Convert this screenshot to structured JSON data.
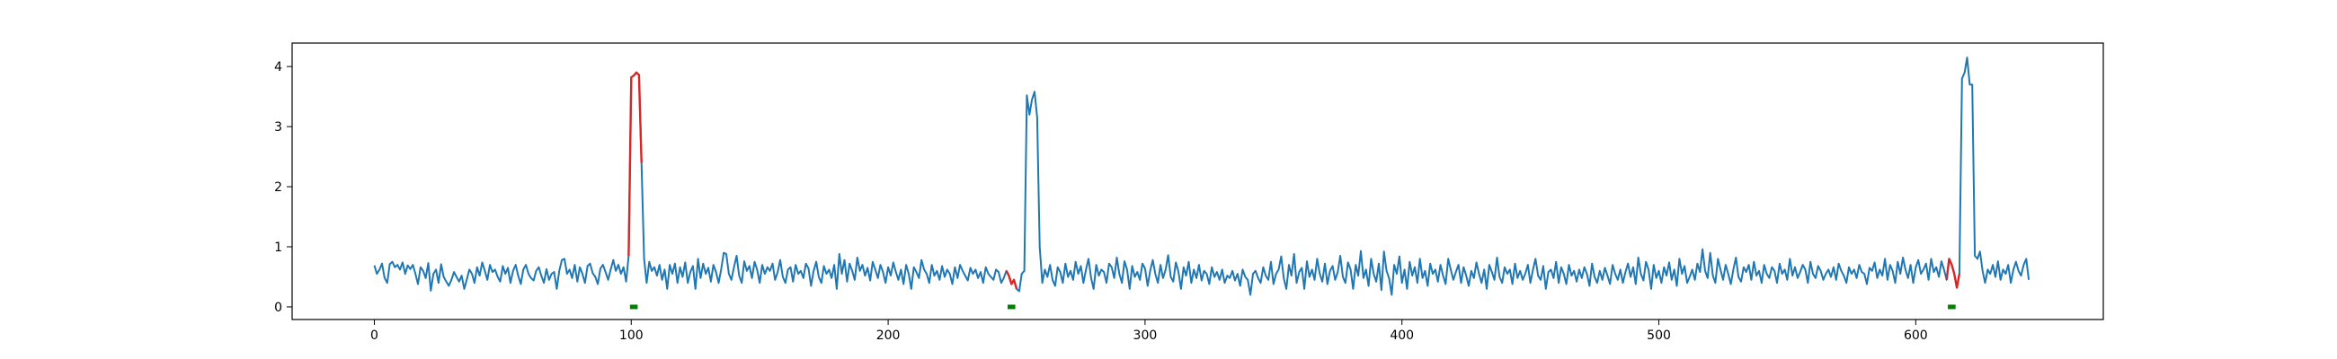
{
  "chart_data": {
    "type": "line",
    "title": "",
    "xlabel": "",
    "ylabel": "",
    "xlim": [
      -32,
      673
    ],
    "ylim": [
      -0.21,
      4.39
    ],
    "x_ticks": [
      0,
      100,
      200,
      300,
      400,
      500,
      600
    ],
    "y_ticks": [
      0,
      1,
      2,
      3,
      4
    ],
    "grid": false,
    "legend": null,
    "colors": {
      "signal": "#1f77b4",
      "anomaly": "#d62728",
      "marker": "#008000"
    },
    "series": [
      {
        "role": "signal",
        "x_start": 0,
        "x_step": 1,
        "values": [
          0.69,
          0.55,
          0.62,
          0.72,
          0.48,
          0.4,
          0.71,
          0.75,
          0.66,
          0.7,
          0.62,
          0.74,
          0.55,
          0.69,
          0.63,
          0.7,
          0.55,
          0.38,
          0.66,
          0.6,
          0.48,
          0.73,
          0.27,
          0.55,
          0.62,
          0.4,
          0.71,
          0.5,
          0.42,
          0.35,
          0.45,
          0.58,
          0.5,
          0.42,
          0.52,
          0.3,
          0.46,
          0.62,
          0.55,
          0.4,
          0.66,
          0.52,
          0.74,
          0.6,
          0.45,
          0.7,
          0.58,
          0.62,
          0.5,
          0.42,
          0.68,
          0.55,
          0.65,
          0.4,
          0.6,
          0.7,
          0.52,
          0.38,
          0.62,
          0.7,
          0.55,
          0.48,
          0.44,
          0.6,
          0.66,
          0.52,
          0.4,
          0.63,
          0.45,
          0.55,
          0.58,
          0.3,
          0.6,
          0.78,
          0.8,
          0.55,
          0.62,
          0.48,
          0.7,
          0.42,
          0.66,
          0.55,
          0.4,
          0.68,
          0.72,
          0.56,
          0.5,
          0.38,
          0.64,
          0.7,
          0.58,
          0.45,
          0.62,
          0.78,
          0.6,
          0.7,
          0.55,
          0.66,
          0.42,
          0.85,
          3.82,
          3.85,
          3.9,
          3.86,
          2.4,
          0.8,
          0.4,
          0.75,
          0.6,
          0.66,
          0.52,
          0.7,
          0.45,
          0.62,
          0.3,
          0.7,
          0.55,
          0.72,
          0.4,
          0.66,
          0.5,
          0.74,
          0.4,
          0.58,
          0.68,
          0.3,
          0.8,
          0.48,
          0.72,
          0.55,
          0.65,
          0.42,
          0.7,
          0.58,
          0.4,
          0.62,
          0.9,
          0.88,
          0.55,
          0.45,
          0.66,
          0.85,
          0.52,
          0.4,
          0.76,
          0.6,
          0.68,
          0.48,
          0.75,
          0.62,
          0.4,
          0.7,
          0.55,
          0.66,
          0.6,
          0.72,
          0.45,
          0.58,
          0.78,
          0.5,
          0.4,
          0.62,
          0.66,
          0.42,
          0.7,
          0.55,
          0.6,
          0.48,
          0.72,
          0.64,
          0.35,
          0.6,
          0.75,
          0.5,
          0.4,
          0.68,
          0.55,
          0.62,
          0.48,
          0.7,
          0.3,
          0.88,
          0.55,
          0.78,
          0.42,
          0.72,
          0.6,
          0.45,
          0.82,
          0.6,
          0.7,
          0.52,
          0.65,
          0.44,
          0.75,
          0.62,
          0.48,
          0.7,
          0.58,
          0.4,
          0.66,
          0.52,
          0.74,
          0.58,
          0.45,
          0.62,
          0.38,
          0.7,
          0.55,
          0.3,
          0.66,
          0.58,
          0.48,
          0.78,
          0.62,
          0.55,
          0.4,
          0.7,
          0.52,
          0.6,
          0.45,
          0.68,
          0.5,
          0.62,
          0.55,
          0.38,
          0.66,
          0.48,
          0.7,
          0.6,
          0.52,
          0.44,
          0.65,
          0.55,
          0.62,
          0.48,
          0.58,
          0.4,
          0.66,
          0.55,
          0.5,
          0.45,
          0.62,
          0.58,
          0.4,
          0.48,
          0.6,
          0.52,
          0.38,
          0.45,
          0.3,
          0.26,
          0.55,
          0.6,
          3.52,
          3.2,
          3.45,
          3.58,
          3.15,
          1.0,
          0.4,
          0.62,
          0.5,
          0.7,
          0.45,
          0.35,
          0.66,
          0.58,
          0.4,
          0.72,
          0.5,
          0.6,
          0.45,
          0.75,
          0.55,
          0.68,
          0.4,
          0.62,
          0.8,
          0.48,
          0.3,
          0.7,
          0.52,
          0.62,
          0.58,
          0.4,
          0.72,
          0.66,
          0.48,
          0.82,
          0.55,
          0.4,
          0.76,
          0.62,
          0.3,
          0.68,
          0.5,
          0.58,
          0.45,
          0.72,
          0.64,
          0.35,
          0.6,
          0.78,
          0.55,
          0.4,
          0.7,
          0.48,
          0.62,
          0.86,
          0.5,
          0.42,
          0.74,
          0.58,
          0.3,
          0.66,
          0.52,
          0.75,
          0.4,
          0.62,
          0.48,
          0.7,
          0.44,
          0.6,
          0.55,
          0.38,
          0.66,
          0.5,
          0.58,
          0.45,
          0.62,
          0.4,
          0.52,
          0.48,
          0.6,
          0.44,
          0.55,
          0.35,
          0.62,
          0.5,
          0.45,
          0.2,
          0.55,
          0.6,
          0.48,
          0.4,
          0.66,
          0.52,
          0.45,
          0.75,
          0.38,
          0.55,
          0.62,
          0.84,
          0.48,
          0.3,
          0.7,
          0.52,
          0.88,
          0.4,
          0.58,
          0.65,
          0.3,
          0.76,
          0.5,
          0.62,
          0.45,
          0.8,
          0.55,
          0.42,
          0.72,
          0.38,
          0.6,
          0.68,
          0.45,
          0.58,
          0.85,
          0.5,
          0.4,
          0.74,
          0.62,
          0.3,
          0.7,
          0.52,
          0.93,
          0.48,
          0.62,
          0.35,
          0.8,
          0.55,
          0.42,
          0.72,
          0.28,
          0.92,
          0.6,
          0.48,
          0.2,
          0.7,
          0.55,
          0.84,
          0.4,
          0.62,
          0.3,
          0.75,
          0.52,
          0.66,
          0.4,
          0.8,
          0.48,
          0.6,
          0.35,
          0.72,
          0.55,
          0.62,
          0.42,
          0.7,
          0.52,
          0.38,
          0.8,
          0.62,
          0.45,
          0.58,
          0.7,
          0.4,
          0.66,
          0.52,
          0.35,
          0.6,
          0.48,
          0.74,
          0.55,
          0.4,
          0.62,
          0.3,
          0.7,
          0.58,
          0.45,
          0.82,
          0.5,
          0.4,
          0.66,
          0.55,
          0.62,
          0.38,
          0.72,
          0.48,
          0.6,
          0.45,
          0.55,
          0.7,
          0.4,
          0.62,
          0.8,
          0.52,
          0.45,
          0.68,
          0.3,
          0.58,
          0.62,
          0.48,
          0.75,
          0.4,
          0.66,
          0.55,
          0.38,
          0.7,
          0.52,
          0.6,
          0.42,
          0.62,
          0.48,
          0.66,
          0.55,
          0.35,
          0.72,
          0.5,
          0.4,
          0.6,
          0.45,
          0.65,
          0.52,
          0.38,
          0.7,
          0.55,
          0.45,
          0.62,
          0.4,
          0.58,
          0.72,
          0.5,
          0.66,
          0.38,
          0.82,
          0.55,
          0.44,
          0.75,
          0.62,
          0.3,
          0.7,
          0.48,
          0.6,
          0.4,
          0.66,
          0.52,
          0.74,
          0.45,
          0.62,
          0.35,
          0.8,
          0.55,
          0.68,
          0.4,
          0.5,
          0.62,
          0.45,
          0.72,
          0.58,
          0.96,
          0.6,
          0.48,
          0.9,
          0.52,
          0.4,
          0.8,
          0.62,
          0.45,
          0.7,
          0.55,
          0.38,
          0.62,
          0.82,
          0.5,
          0.42,
          0.66,
          0.58,
          0.7,
          0.45,
          0.75,
          0.52,
          0.6,
          0.4,
          0.7,
          0.55,
          0.48,
          0.66,
          0.6,
          0.4,
          0.72,
          0.55,
          0.62,
          0.45,
          0.8,
          0.52,
          0.66,
          0.48,
          0.58,
          0.7,
          0.62,
          0.4,
          0.75,
          0.55,
          0.48,
          0.68,
          0.6,
          0.45,
          0.55,
          0.62,
          0.5,
          0.66,
          0.45,
          0.72,
          0.6,
          0.52,
          0.4,
          0.66,
          0.55,
          0.62,
          0.48,
          0.7,
          0.58,
          0.55,
          0.38,
          0.65,
          0.6,
          0.74,
          0.48,
          0.62,
          0.52,
          0.8,
          0.45,
          0.7,
          0.6,
          0.4,
          0.75,
          0.55,
          0.82,
          0.62,
          0.48,
          0.7,
          0.4,
          0.66,
          0.78,
          0.55,
          0.62,
          0.72,
          0.45,
          0.8,
          0.58,
          0.66,
          0.5,
          0.76,
          0.62,
          0.45,
          0.8,
          0.7,
          0.55,
          0.32,
          0.55,
          3.8,
          3.9,
          4.15,
          3.7,
          3.7,
          0.85,
          0.8,
          0.92,
          0.6,
          0.4,
          0.62,
          0.55,
          0.7,
          0.5,
          0.76,
          0.45,
          0.62,
          0.55,
          0.7,
          0.4,
          0.62,
          0.75,
          0.6,
          0.52,
          0.7,
          0.8,
          0.45
        ]
      }
    ],
    "anomaly_ranges": [
      [
        99,
        104
      ],
      [
        246,
        250
      ],
      [
        612,
        617
      ]
    ],
    "markers": [
      {
        "x_from": 99.5,
        "x_to": 102.5,
        "y": 0
      },
      {
        "x_from": 246.5,
        "x_to": 249.5,
        "y": 0
      },
      {
        "x_from": 612.5,
        "x_to": 615.5,
        "y": 0
      }
    ]
  }
}
